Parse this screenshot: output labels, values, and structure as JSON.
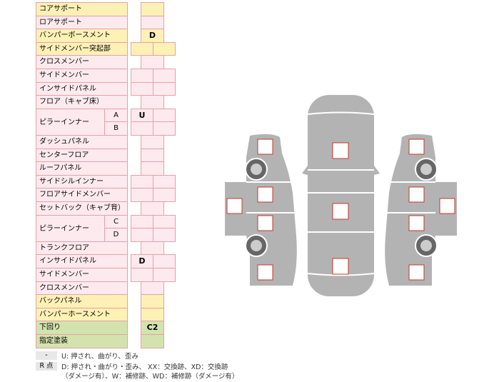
{
  "rows": [
    {
      "label": "コアサポート"
    },
    {
      "label": "ロアサポート"
    },
    {
      "label": "バンパーボースメント",
      "mark": "D"
    },
    {
      "label": "サイドメンバー突起部"
    },
    {
      "label": "クロスメンバー"
    },
    {
      "label": "サイドメンバー"
    },
    {
      "label": "インサイドパネル"
    },
    {
      "label": "フロア（キャブ床）"
    },
    {
      "label": "ピラーインナー",
      "parts": [
        {
          "sub": "A",
          "mark": "U"
        },
        {
          "sub": "B"
        }
      ]
    },
    {
      "label": "ダッシュパネル"
    },
    {
      "label": "センターフロア"
    },
    {
      "label": "ルーフパネル"
    },
    {
      "label": "サイドシルインナー"
    },
    {
      "label": "フロアサイドメンバー"
    },
    {
      "label": "セットバック（キャブ背）"
    },
    {
      "label": "ピラーインナー",
      "parts": [
        {
          "sub": "C"
        },
        {
          "sub": "D"
        }
      ]
    },
    {
      "label": "トランクフロア"
    },
    {
      "label": "インサイドパネル",
      "mark": "D"
    },
    {
      "label": "サイドメンバー"
    },
    {
      "label": "クロスメンバー"
    },
    {
      "label": "バックパネル"
    },
    {
      "label": "バンパーホースメント"
    },
    {
      "label": "下回り",
      "mark": "C2"
    },
    {
      "label": "指定塗装"
    }
  ],
  "legend": [
    {
      "key": "-",
      "lines": [
        "U: 押され、曲がり、歪み"
      ]
    },
    {
      "key": "R 点",
      "lines": [
        "D: 押され・曲がり・歪み、 XX：交換跡、XD：交換跡",
        "（ダメージ有）、W：補修跡、WD：補修跡（ダメージ有）"
      ]
    }
  ]
}
